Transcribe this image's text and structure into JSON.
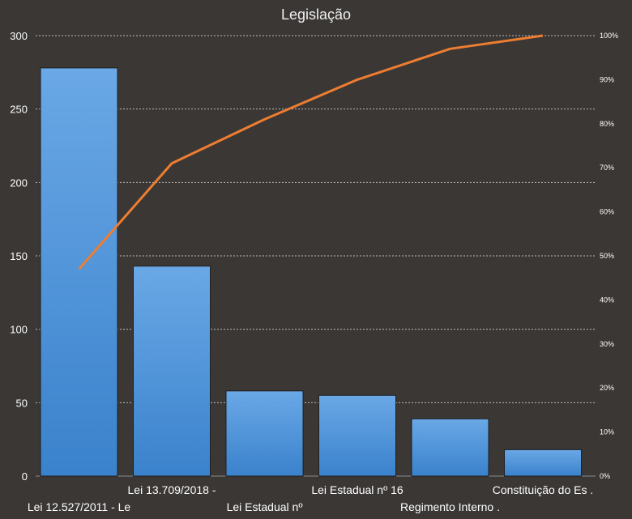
{
  "chart_data": {
    "type": "bar",
    "title": "Legislação",
    "categories": [
      "Lei 12.527/2011 - Le",
      "Lei 13.709/2018 -",
      "Lei Estadual nº",
      "Lei Estadual nº 16",
      "Regimento Interno  .",
      "Constituição do  Es ."
    ],
    "series": [
      {
        "type": "bar",
        "values": [
          278,
          143,
          58,
          55,
          39,
          18
        ]
      },
      {
        "type": "line",
        "axis": "right",
        "values": [
          47,
          71,
          81,
          90,
          97,
          100
        ]
      }
    ],
    "ylim": [
      0,
      300
    ],
    "yticks": [
      0,
      50,
      100,
      150,
      200,
      250,
      300
    ],
    "y2lim": [
      0,
      100
    ],
    "y2ticks": [
      "0%",
      "10%",
      "20%",
      "30%",
      "40%",
      "50%",
      "60%",
      "70%",
      "80%",
      "90%",
      "100%"
    ],
    "grid": true,
    "colors": {
      "bar": "#4a90d9",
      "line": "#ed7d31",
      "background": "#3a3735"
    }
  }
}
